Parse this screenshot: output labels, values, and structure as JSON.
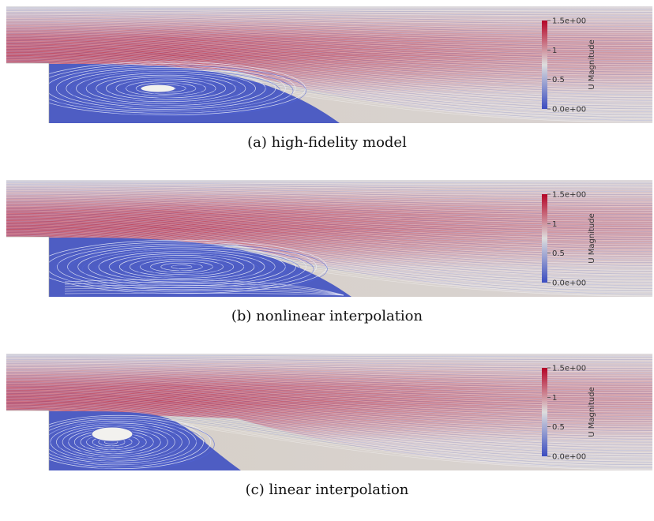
{
  "panels": [
    {
      "id": "a",
      "caption": "(a) high-fidelity model",
      "variant": "hifi",
      "colorbar": {
        "title": "U Magnitude",
        "ticks": [
          "1.5e+00",
          "1",
          "0.5",
          "0.0e+00"
        ]
      }
    },
    {
      "id": "b",
      "caption": "(b) nonlinear interpolation",
      "variant": "nonlinear",
      "colorbar": {
        "title": "U Magnitude",
        "ticks": [
          "1.5e+00",
          "1",
          "0.5",
          "0.0e+00"
        ]
      }
    },
    {
      "id": "c",
      "caption": "(c) linear interpolation",
      "variant": "linear",
      "colorbar": {
        "title": "U Magnitude",
        "ticks": [
          "1.5e+00",
          "1",
          "0.5",
          "0.0e+00"
        ]
      }
    }
  ],
  "colors": {
    "low": "#3b4cc0",
    "mid": "#dddddd",
    "high": "#b40426",
    "background": "#d6d0c8"
  }
}
